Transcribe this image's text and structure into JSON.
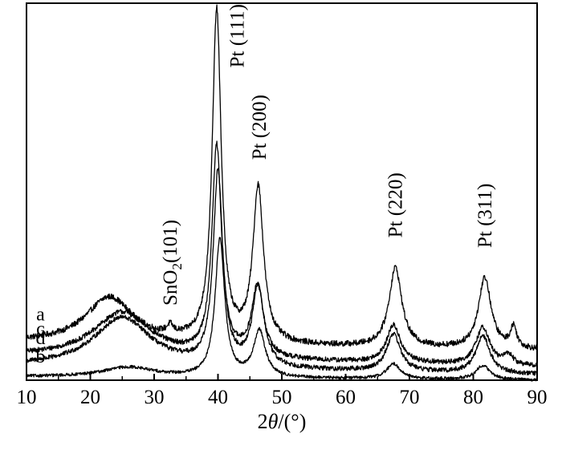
{
  "chart_data": {
    "type": "line",
    "title": "",
    "xlabel": "2θ/(°)",
    "ylabel": "",
    "xlim": [
      10,
      90
    ],
    "xticks": [
      10,
      20,
      30,
      40,
      50,
      60,
      70,
      80,
      90
    ],
    "grid": false,
    "legend": "none",
    "series_color": "#000000",
    "series": [
      {
        "name": "a",
        "baseline": 0.45,
        "slope": -0.0012,
        "noise": 0.035,
        "peaks": [
          {
            "x": 23,
            "h": 0.55,
            "w": 4.5
          },
          {
            "x": 32.5,
            "h": 0.1,
            "w": 0.6
          },
          {
            "x": 39.8,
            "h": 3.95,
            "w": 0.85
          },
          {
            "x": 46.3,
            "h": 1.85,
            "w": 1.0
          },
          {
            "x": 67.8,
            "h": 0.95,
            "w": 1.2
          },
          {
            "x": 81.8,
            "h": 0.85,
            "w": 1.2
          },
          {
            "x": 86.3,
            "h": 0.25,
            "w": 0.6
          }
        ]
      },
      {
        "name": "c",
        "baseline": 0.28,
        "slope": -0.0015,
        "noise": 0.03,
        "peaks": [
          {
            "x": 25,
            "h": 0.55,
            "w": 5.5
          },
          {
            "x": 39.8,
            "h": 2.5,
            "w": 0.9
          },
          {
            "x": 46.2,
            "h": 0.85,
            "w": 1.1
          },
          {
            "x": 67.5,
            "h": 0.45,
            "w": 1.3
          },
          {
            "x": 81.5,
            "h": 0.45,
            "w": 1.3
          },
          {
            "x": 85.5,
            "h": 0.12,
            "w": 0.8
          }
        ]
      },
      {
        "name": "d",
        "baseline": 0.16,
        "slope": -0.0012,
        "noise": 0.028,
        "peaks": [
          {
            "x": 25,
            "h": 0.6,
            "w": 5.5
          },
          {
            "x": 40.0,
            "h": 2.3,
            "w": 0.9
          },
          {
            "x": 46.3,
            "h": 0.95,
            "w": 1.1
          },
          {
            "x": 67.5,
            "h": 0.45,
            "w": 1.3
          },
          {
            "x": 81.5,
            "h": 0.45,
            "w": 1.3
          }
        ]
      },
      {
        "name": "b",
        "baseline": 0.04,
        "slope": -0.0005,
        "noise": 0.018,
        "peaks": [
          {
            "x": 26,
            "h": 0.12,
            "w": 5.0
          },
          {
            "x": 40.3,
            "h": 1.65,
            "w": 0.9
          },
          {
            "x": 46.5,
            "h": 0.55,
            "w": 1.1
          },
          {
            "x": 67.5,
            "h": 0.18,
            "w": 1.3
          },
          {
            "x": 81.5,
            "h": 0.17,
            "w": 1.3
          }
        ]
      }
    ],
    "annotations": [
      {
        "x": 32.5,
        "y": 0.89,
        "parts": [
          {
            "t": "SnO",
            "sub": false
          },
          {
            "t": "2",
            "sub": true
          },
          {
            "t": "(101)",
            "sub": false
          }
        ]
      },
      {
        "x": 43.0,
        "y": 3.73,
        "parts": [
          {
            "t": "Pt (111)",
            "sub": false
          }
        ]
      },
      {
        "x": 46.5,
        "y": 2.63,
        "parts": [
          {
            "t": "Pt (200)",
            "sub": false
          }
        ]
      },
      {
        "x": 67.8,
        "y": 1.7,
        "parts": [
          {
            "t": "Pt (220)",
            "sub": false
          }
        ]
      },
      {
        "x": 81.8,
        "y": 1.58,
        "parts": [
          {
            "t": "Pt (311)",
            "sub": false
          }
        ]
      }
    ],
    "ylim": [
      0,
      4.5
    ]
  }
}
